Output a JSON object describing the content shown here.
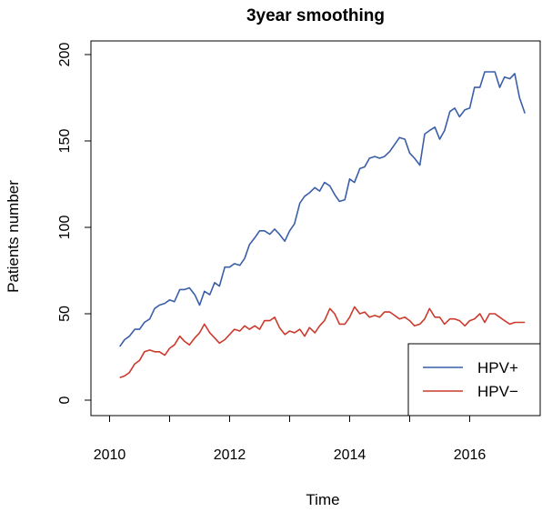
{
  "chart_data": {
    "type": "line",
    "title": "3year smoothing",
    "xlabel": "Time",
    "ylabel": "Patients number",
    "xlim": [
      2010,
      2017
    ],
    "ylim": [
      0,
      200
    ],
    "xticks": [
      2010,
      2012,
      2014,
      2016
    ],
    "yticks": [
      0,
      50,
      100,
      150,
      200
    ],
    "grid": false,
    "legend_position": "bottom-right",
    "series": [
      {
        "name": "HPV+",
        "color": "#3a5fa8",
        "x": [
          2010.17,
          2010.25,
          2010.33,
          2010.42,
          2010.5,
          2010.58,
          2010.67,
          2010.75,
          2010.83,
          2010.92,
          2011.0,
          2011.08,
          2011.17,
          2011.25,
          2011.33,
          2011.42,
          2011.5,
          2011.58,
          2011.67,
          2011.75,
          2011.83,
          2011.92,
          2012.0,
          2012.08,
          2012.17,
          2012.25,
          2012.33,
          2012.42,
          2012.5,
          2012.58,
          2012.67,
          2012.75,
          2012.83,
          2012.92,
          2013.0,
          2013.08,
          2013.17,
          2013.25,
          2013.33,
          2013.42,
          2013.5,
          2013.58,
          2013.67,
          2013.75,
          2013.83,
          2013.92,
          2014.0,
          2014.08,
          2014.17,
          2014.25,
          2014.33,
          2014.42,
          2014.5,
          2014.58,
          2014.67,
          2014.75,
          2014.83,
          2014.92,
          2015.0,
          2015.08,
          2015.17,
          2015.25,
          2015.33,
          2015.42,
          2015.5,
          2015.58,
          2015.67,
          2015.75,
          2015.83,
          2015.92,
          2016.0,
          2016.08,
          2016.17,
          2016.25,
          2016.33,
          2016.42,
          2016.5,
          2016.58,
          2016.67,
          2016.75,
          2016.83,
          2016.92
        ],
        "y": [
          31,
          35,
          37,
          41,
          41,
          45,
          47,
          53,
          55,
          56,
          58,
          57,
          64,
          64,
          65,
          61,
          55,
          63,
          61,
          68,
          66,
          77,
          77,
          79,
          78,
          82,
          90,
          94,
          98,
          98,
          96,
          99,
          96,
          92,
          98,
          102,
          114,
          118,
          120,
          123,
          121,
          126,
          124,
          119,
          115,
          116,
          128,
          126,
          134,
          135,
          140,
          141,
          140,
          141,
          144,
          148,
          152,
          151,
          143,
          140,
          136,
          154,
          156,
          158,
          151,
          156,
          167,
          169,
          164,
          168,
          169,
          181,
          181,
          190,
          190,
          190,
          181,
          187,
          186,
          189,
          175,
          166
        ]
      },
      {
        "name": "HPV−",
        "color": "#cc3a2e",
        "x": [
          2010.17,
          2010.25,
          2010.33,
          2010.42,
          2010.5,
          2010.58,
          2010.67,
          2010.75,
          2010.83,
          2010.92,
          2011.0,
          2011.08,
          2011.17,
          2011.25,
          2011.33,
          2011.42,
          2011.5,
          2011.58,
          2011.67,
          2011.75,
          2011.83,
          2011.92,
          2012.0,
          2012.08,
          2012.17,
          2012.25,
          2012.33,
          2012.42,
          2012.5,
          2012.58,
          2012.67,
          2012.75,
          2012.83,
          2012.92,
          2013.0,
          2013.08,
          2013.17,
          2013.25,
          2013.33,
          2013.42,
          2013.5,
          2013.58,
          2013.67,
          2013.75,
          2013.83,
          2013.92,
          2014.0,
          2014.08,
          2014.17,
          2014.25,
          2014.33,
          2014.42,
          2014.5,
          2014.58,
          2014.67,
          2014.75,
          2014.83,
          2014.92,
          2015.0,
          2015.08,
          2015.17,
          2015.25,
          2015.33,
          2015.42,
          2015.5,
          2015.58,
          2015.67,
          2015.75,
          2015.83,
          2015.92,
          2016.0,
          2016.08,
          2016.17,
          2016.25,
          2016.33,
          2016.42,
          2016.5,
          2016.58,
          2016.67,
          2016.75,
          2016.83,
          2016.92
        ],
        "y": [
          13,
          14,
          16,
          21,
          23,
          28,
          29,
          28,
          28,
          26,
          30,
          32,
          37,
          34,
          32,
          36,
          39,
          44,
          39,
          36,
          33,
          35,
          38,
          41,
          40,
          43,
          41,
          43,
          41,
          46,
          46,
          48,
          42,
          38,
          40,
          39,
          41,
          37,
          42,
          39,
          43,
          46,
          53,
          50,
          44,
          44,
          48,
          54,
          50,
          51,
          48,
          49,
          48,
          51,
          51,
          49,
          47,
          48,
          46,
          43,
          44,
          47,
          53,
          48,
          48,
          44,
          47,
          47,
          46,
          43,
          46,
          47,
          50,
          45,
          50,
          50,
          48,
          46,
          44,
          45,
          45,
          45
        ]
      }
    ]
  }
}
